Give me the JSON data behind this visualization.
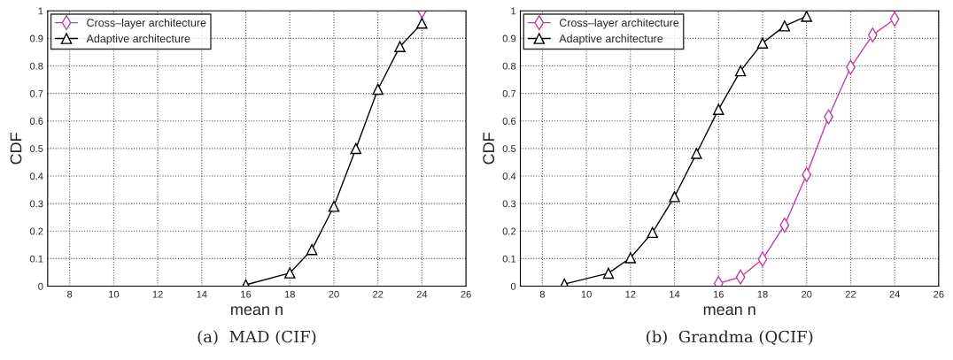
{
  "chart_data": [
    {
      "type": "line",
      "xlabel": "mean n",
      "ylabel": "CDF",
      "xlim": [
        7,
        26
      ],
      "ylim": [
        0,
        1
      ],
      "xticks": [
        8,
        10,
        12,
        14,
        16,
        18,
        20,
        22,
        24,
        26
      ],
      "yticks": [
        0,
        0.1,
        0.2,
        0.3,
        0.4,
        0.5,
        0.6,
        0.7,
        0.8,
        0.9,
        1
      ],
      "grid": true,
      "legend": "top left",
      "annotations": [
        "(a)  MAD (CIF)"
      ],
      "series": [
        {
          "name": "Cross–layer architecture",
          "color": "#c040a0",
          "marker": "diamond",
          "x": [
            24
          ],
          "values": [
            1.0
          ]
        },
        {
          "name": "Adaptive architecture",
          "color": "#000000",
          "marker": "triangle",
          "x": [
            16,
            18,
            19,
            20,
            21,
            22,
            23,
            24
          ],
          "values": [
            0.005,
            0.048,
            0.133,
            0.29,
            0.5,
            0.715,
            0.87,
            0.955
          ]
        }
      ]
    },
    {
      "type": "line",
      "xlabel": "mean n",
      "ylabel": "CDF",
      "xlim": [
        7,
        26
      ],
      "ylim": [
        0,
        1
      ],
      "xticks": [
        8,
        10,
        12,
        14,
        16,
        18,
        20,
        22,
        24,
        26
      ],
      "yticks": [
        0,
        0.1,
        0.2,
        0.3,
        0.4,
        0.5,
        0.6,
        0.7,
        0.8,
        0.9,
        1
      ],
      "grid": true,
      "legend": "top left",
      "annotations": [
        "(b)  Grandma (QCIF)"
      ],
      "series": [
        {
          "name": "Cross–layer architecture",
          "color": "#c040a0",
          "marker": "diamond",
          "x": [
            16,
            17,
            18,
            19,
            20,
            21,
            22,
            23,
            24
          ],
          "values": [
            0.01,
            0.033,
            0.098,
            0.222,
            0.405,
            0.615,
            0.795,
            0.912,
            0.97
          ]
        },
        {
          "name": "Adaptive architecture",
          "color": "#000000",
          "marker": "triangle",
          "x": [
            9,
            11,
            12,
            13,
            14,
            15,
            16,
            17,
            18,
            19,
            20
          ],
          "values": [
            0.008,
            0.047,
            0.103,
            0.195,
            0.325,
            0.482,
            0.642,
            0.782,
            0.883,
            0.945,
            0.98
          ]
        }
      ]
    }
  ]
}
